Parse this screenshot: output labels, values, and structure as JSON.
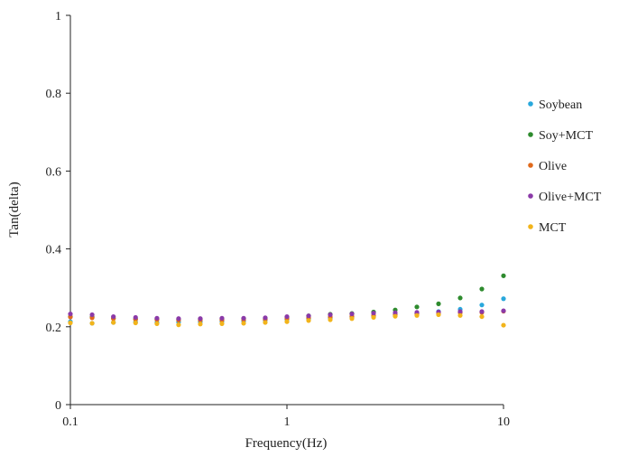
{
  "chart_data": {
    "type": "scatter",
    "title": "",
    "xlabel": "Frequency(Hz)",
    "ylabel": "Tan(delta)",
    "xscale": "log",
    "xlim": [
      0.1,
      10
    ],
    "ylim": [
      0,
      1
    ],
    "xticks": [
      0.1,
      1,
      10
    ],
    "xtick_labels": [
      "0.1",
      "1",
      "10"
    ],
    "yticks": [
      0,
      0.2,
      0.4,
      0.6,
      0.8,
      1
    ],
    "ytick_labels": [
      "0",
      "0.2",
      "0.4",
      "0.6",
      "0.8",
      "1"
    ],
    "grid": false,
    "legend_position": "right",
    "x": [
      0.1,
      0.126,
      0.158,
      0.2,
      0.251,
      0.316,
      0.398,
      0.501,
      0.631,
      0.794,
      1,
      1.259,
      1.585,
      1.995,
      2.512,
      3.162,
      3.981,
      5.012,
      6.31,
      7.943,
      10
    ],
    "series": [
      {
        "name": "Soybean",
        "color": "#29a8dc",
        "values": [
          0.213,
          0.209,
          0.211,
          0.212,
          0.211,
          0.212,
          0.213,
          0.214,
          0.215,
          0.217,
          0.219,
          0.221,
          0.223,
          0.225,
          0.227,
          0.23,
          0.234,
          0.239,
          0.245,
          0.256,
          0.272
        ]
      },
      {
        "name": "Soy+MCT",
        "color": "#2e8b2e",
        "values": [
          0.226,
          0.225,
          0.222,
          0.22,
          0.22,
          0.219,
          0.22,
          0.22,
          0.221,
          0.222,
          0.224,
          0.228,
          0.232,
          0.234,
          0.238,
          0.243,
          0.251,
          0.259,
          0.274,
          0.297,
          0.331
        ]
      },
      {
        "name": "Olive",
        "color": "#e06a1c",
        "values": [
          0.225,
          0.223,
          0.221,
          0.219,
          0.218,
          0.217,
          0.217,
          0.217,
          0.218,
          0.219,
          0.221,
          0.223,
          0.225,
          0.227,
          0.229,
          0.231,
          0.233,
          0.234,
          0.236,
          0.237,
          0.24
        ]
      },
      {
        "name": "Olive+MCT",
        "color": "#8b3aa8",
        "values": [
          0.233,
          0.231,
          0.226,
          0.224,
          0.222,
          0.221,
          0.221,
          0.222,
          0.222,
          0.223,
          0.226,
          0.228,
          0.231,
          0.233,
          0.235,
          0.236,
          0.237,
          0.238,
          0.239,
          0.239,
          0.241
        ]
      },
      {
        "name": "MCT",
        "color": "#f2b41b",
        "values": [
          0.21,
          0.209,
          0.211,
          0.21,
          0.208,
          0.205,
          0.207,
          0.208,
          0.209,
          0.211,
          0.213,
          0.216,
          0.218,
          0.221,
          0.224,
          0.227,
          0.229,
          0.231,
          0.229,
          0.226,
          0.204
        ]
      }
    ]
  }
}
